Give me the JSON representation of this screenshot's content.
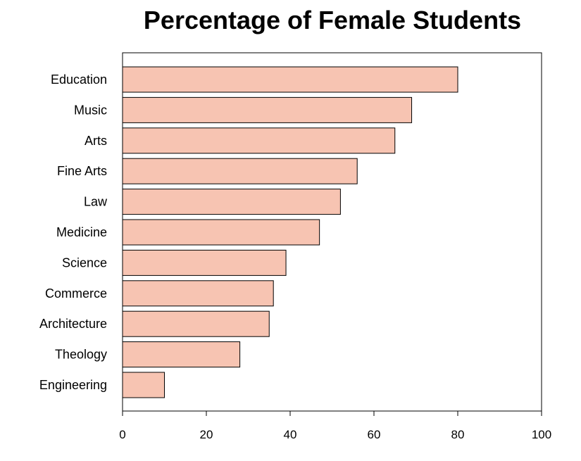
{
  "chart_data": {
    "type": "bar",
    "orientation": "horizontal",
    "title": "Percentage of Female Students",
    "xlabel": "",
    "ylabel": "",
    "categories": [
      "Education",
      "Music",
      "Arts",
      "Fine Arts",
      "Law",
      "Medicine",
      "Science",
      "Commerce",
      "Architecture",
      "Theology",
      "Engineering"
    ],
    "values": [
      80,
      69,
      65,
      56,
      52,
      47,
      39,
      36,
      35,
      28,
      10
    ],
    "xlim": [
      0,
      100
    ],
    "xticks": [
      0,
      20,
      40,
      60,
      80,
      100
    ],
    "grid": false,
    "bar_color": "#f7c4b2",
    "bar_edge_color": "#000000"
  }
}
